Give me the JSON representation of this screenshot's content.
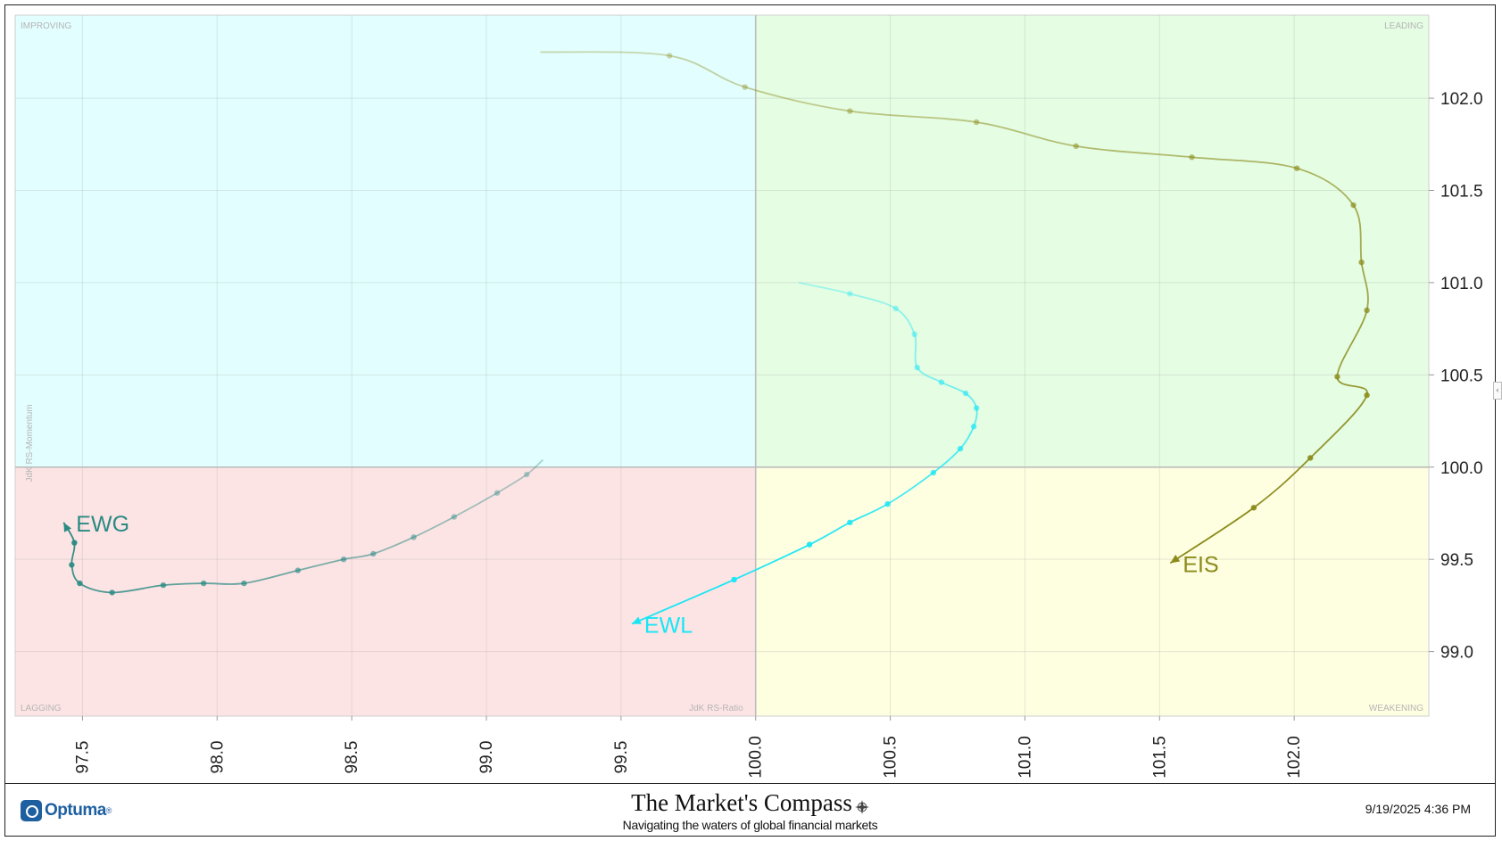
{
  "chart_data": {
    "type": "line",
    "subtype": "relative-rotation-graph",
    "quadrants": {
      "improving": "IMPROVING",
      "leading": "LEADING",
      "lagging": "LAGGING",
      "weakening": "WEAKENING"
    },
    "quadrant_colors": {
      "improving": "#e2fefe",
      "leading": "#e4fde3",
      "lagging": "#fde4e4",
      "weakening": "#fefee1"
    },
    "xlabel": "JdK RS-Ratio",
    "ylabel": "JdK RS-Momentum",
    "xlim": [
      97.25,
      102.5
    ],
    "ylim": [
      98.65,
      102.45
    ],
    "center": [
      100,
      100
    ],
    "x_ticks": [
      "97.5",
      "98.0",
      "98.5",
      "99.0",
      "99.5",
      "100.0",
      "100.5",
      "101.0",
      "101.5",
      "102.0"
    ],
    "y_ticks": [
      "99.0",
      "99.5",
      "100.0",
      "100.5",
      "101.0",
      "101.5",
      "102.0"
    ],
    "grid": true,
    "series": [
      {
        "name": "EIS",
        "color": "#8b8b1a",
        "points": [
          [
            99.2,
            102.25
          ],
          [
            99.68,
            102.23
          ],
          [
            99.96,
            102.06
          ],
          [
            100.35,
            101.93
          ],
          [
            100.82,
            101.87
          ],
          [
            101.19,
            101.74
          ],
          [
            101.62,
            101.68
          ],
          [
            102.01,
            101.62
          ],
          [
            102.22,
            101.42
          ],
          [
            102.25,
            101.11
          ],
          [
            102.27,
            100.85
          ],
          [
            102.16,
            100.49
          ],
          [
            102.27,
            100.39
          ],
          [
            102.06,
            100.05
          ],
          [
            101.85,
            99.78
          ],
          [
            101.54,
            99.48
          ]
        ]
      },
      {
        "name": "EWL",
        "color": "#19e6f5",
        "points": [
          [
            100.16,
            101.0
          ],
          [
            100.35,
            100.94
          ],
          [
            100.52,
            100.86
          ],
          [
            100.59,
            100.72
          ],
          [
            100.6,
            100.54
          ],
          [
            100.69,
            100.46
          ],
          [
            100.78,
            100.4
          ],
          [
            100.82,
            100.32
          ],
          [
            100.81,
            100.22
          ],
          [
            100.76,
            100.1
          ],
          [
            100.66,
            99.97
          ],
          [
            100.49,
            99.8
          ],
          [
            100.35,
            99.7
          ],
          [
            100.2,
            99.58
          ],
          [
            99.92,
            99.39
          ],
          [
            99.54,
            99.15
          ]
        ]
      },
      {
        "name": "EWG",
        "color": "#2a8a84",
        "points": [
          [
            99.21,
            100.04
          ],
          [
            99.15,
            99.96
          ],
          [
            99.04,
            99.86
          ],
          [
            98.88,
            99.73
          ],
          [
            98.73,
            99.62
          ],
          [
            98.58,
            99.53
          ],
          [
            98.47,
            99.5
          ],
          [
            98.3,
            99.44
          ],
          [
            98.1,
            99.37
          ],
          [
            97.95,
            99.37
          ],
          [
            97.8,
            99.36
          ],
          [
            97.61,
            99.32
          ],
          [
            97.49,
            99.37
          ],
          [
            97.46,
            99.47
          ],
          [
            97.47,
            99.59
          ],
          [
            97.43,
            99.7
          ]
        ]
      }
    ]
  },
  "footer": {
    "brand": "Optuma",
    "brand_tm": "®",
    "title": "The Market's Compass",
    "subtitle": "Navigating the waters of global financial markets",
    "timestamp": "9/19/2025 4:36 PM"
  }
}
